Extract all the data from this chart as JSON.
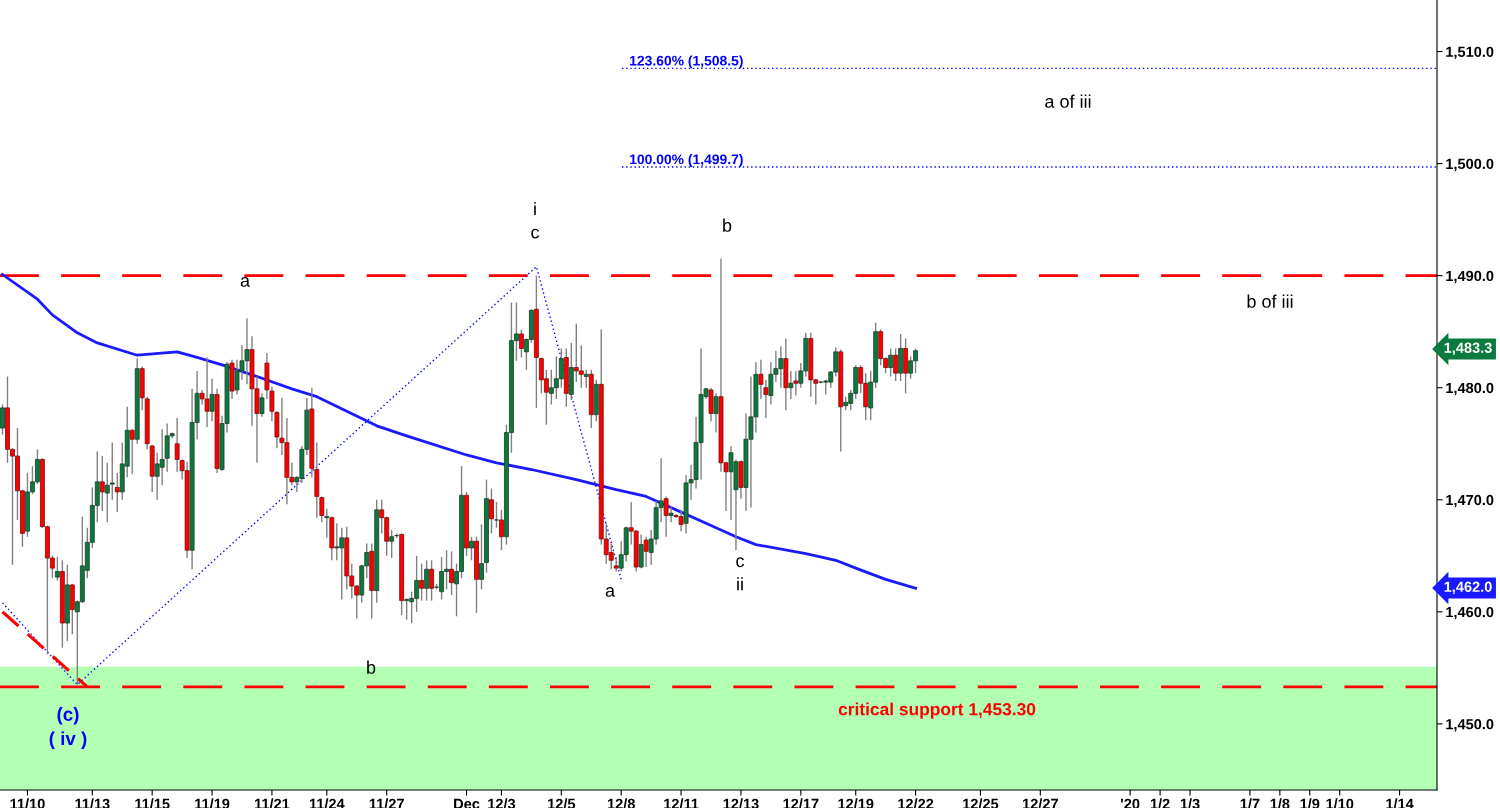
{
  "chart_data": {
    "type": "candlestick",
    "categories": [
      null,
      null,
      null,
      null,
      null,
      "11/10",
      null,
      null,
      null,
      null,
      null,
      null,
      null,
      null,
      null,
      null,
      null,
      null,
      "11/13",
      null,
      null,
      null,
      null,
      null,
      null,
      null,
      null,
      null,
      null,
      null,
      "11/15",
      null,
      null,
      null,
      null,
      null,
      null,
      null,
      null,
      null,
      null,
      null,
      "11/19",
      null,
      null,
      null,
      null,
      null,
      null,
      null,
      null,
      null,
      null,
      null,
      "11/21",
      null,
      null,
      null,
      null,
      null,
      null,
      null,
      null,
      null,
      null,
      "11/24",
      null,
      null,
      null,
      null,
      null,
      null,
      null,
      null,
      null,
      null,
      null,
      "11/27",
      null,
      null,
      null,
      null,
      null,
      null,
      null,
      null,
      null,
      null,
      null,
      null,
      null,
      null,
      null,
      "Dec",
      null,
      null,
      null,
      null,
      null,
      null,
      "12/3",
      null,
      null,
      null,
      null,
      null,
      null,
      null,
      null,
      null,
      null,
      null,
      "12/5",
      null,
      null,
      null,
      null,
      null,
      null,
      null,
      null,
      null,
      null,
      null,
      "12/8",
      null,
      null,
      null,
      null,
      null,
      null,
      null,
      null,
      null,
      null,
      null,
      "12/11",
      null,
      null,
      null,
      null,
      null,
      null,
      null,
      null,
      null,
      null,
      null,
      "12/13",
      null,
      null,
      null,
      null,
      null,
      null,
      null,
      null,
      null,
      null,
      null,
      "12/17",
      null,
      null,
      null,
      null,
      null,
      null,
      null,
      null,
      null,
      null,
      "12/19",
      null,
      null,
      null,
      null,
      null,
      null,
      null,
      null,
      null,
      null,
      null,
      "12/22",
      null,
      null,
      null,
      null,
      null,
      null,
      null,
      null,
      null,
      null,
      null,
      null,
      "12/25",
      null,
      null,
      null,
      null,
      null,
      null,
      null,
      null,
      null,
      null,
      null,
      "12/27",
      null,
      null,
      null,
      null,
      null,
      null,
      null,
      null,
      null,
      null,
      null,
      null,
      null,
      null,
      null,
      null,
      null,
      "'20",
      null,
      null,
      null,
      null,
      null,
      "1/2",
      null,
      null,
      null,
      null,
      null,
      "1/3",
      null,
      null,
      null,
      null,
      null,
      null,
      null,
      null,
      null,
      null,
      null,
      "1/7",
      null,
      null,
      null,
      null,
      null,
      "1/8",
      null,
      null,
      null,
      null,
      null,
      "1/9",
      null,
      null,
      null,
      null,
      null,
      "1/10",
      null,
      null,
      null,
      null,
      null,
      null,
      null,
      null,
      null,
      null,
      null,
      "1/14",
      null,
      null,
      null,
      null,
      null,
      null,
      null
    ],
    "ohlc": [
      [
        1476.4,
        1478.5,
        1475.8,
        1478.2
      ],
      [
        1478.2,
        1481.0,
        1473.3,
        1474.5
      ],
      [
        1474.5,
        1474.6,
        1464.2,
        1473.9
      ],
      [
        1473.9,
        1476.4,
        1468.2,
        1470.8
      ],
      [
        1470.8,
        1470.9,
        1465.8,
        1467.0
      ],
      [
        1467.2,
        1472.4,
        1466.7,
        1470.7
      ],
      [
        1470.7,
        1473.0,
        1470.5,
        1471.6
      ],
      [
        1471.6,
        1474.5,
        1471.4,
        1473.6
      ],
      [
        1473.6,
        1473.7,
        1467.5,
        1467.6
      ],
      [
        1467.6,
        1467.7,
        1456.2,
        1464.8
      ],
      [
        1464.8,
        1465.0,
        1463.0,
        1463.9
      ],
      [
        1463.1,
        1464.9,
        1462.8,
        1463.6
      ],
      [
        1463.6,
        1464.6,
        1456.8,
        1459.0
      ],
      [
        1459.0,
        1464.2,
        1457.4,
        1462.4
      ],
      [
        1462.4,
        1462.5,
        1458.0,
        1460.2
      ],
      [
        1460.0,
        1461.0,
        1453.5,
        1460.9
      ],
      [
        1460.9,
        1468.5,
        1460.8,
        1464.1
      ],
      [
        1463.7,
        1467.5,
        1463.0,
        1466.2
      ],
      [
        1466.2,
        1471.1,
        1465.7,
        1469.5
      ],
      [
        1469.5,
        1474.3,
        1468.0,
        1471.6
      ],
      [
        1471.6,
        1473.9,
        1469.0,
        1470.7
      ],
      [
        1470.6,
        1473.3,
        1468.0,
        1471.3
      ],
      [
        1471.4,
        1475.1,
        1470.0,
        1471.5
      ],
      [
        1471.1,
        1472.4,
        1468.9,
        1470.7
      ],
      [
        1470.7,
        1475.1,
        1470.0,
        1473.2
      ],
      [
        1473.0,
        1478.3,
        1472.0,
        1476.2
      ],
      [
        1476.2,
        1476.3,
        1472.3,
        1475.4
      ],
      [
        1475.4,
        1482.6,
        1475.0,
        1481.7
      ],
      [
        1481.7,
        1481.9,
        1478.0,
        1479.1
      ],
      [
        1479.0,
        1479.2,
        1474.5,
        1475.0
      ],
      [
        1474.8,
        1474.9,
        1470.7,
        1472.1
      ],
      [
        1472.1,
        1474.2,
        1470.0,
        1473.2
      ],
      [
        1472.9,
        1476.3,
        1471.3,
        1473.6
      ],
      [
        1473.7,
        1476.8,
        1472.5,
        1475.7
      ],
      [
        1475.7,
        1476.0,
        1475.5,
        1475.9
      ],
      [
        1475.0,
        1477.3,
        1472.5,
        1473.6
      ],
      [
        1473.5,
        1473.6,
        1471.8,
        1472.6
      ],
      [
        1472.6,
        1473.4,
        1464.8,
        1465.5
      ],
      [
        1465.5,
        1479.9,
        1463.8,
        1476.9
      ],
      [
        1476.9,
        1481.5,
        1475.4,
        1479.5
      ],
      [
        1479.5,
        1479.8,
        1478.5,
        1479.0
      ],
      [
        1479.0,
        1482.7,
        1476.5,
        1477.9
      ],
      [
        1477.9,
        1480.8,
        1477.0,
        1479.4
      ],
      [
        1479.4,
        1479.9,
        1472.4,
        1472.8
      ],
      [
        1472.7,
        1477.5,
        1472.6,
        1476.8
      ],
      [
        1476.8,
        1482.3,
        1476.0,
        1482.1
      ],
      [
        1482.2,
        1482.5,
        1479.0,
        1479.7
      ],
      [
        1479.8,
        1482.5,
        1479.4,
        1481.5
      ],
      [
        1481.5,
        1483.8,
        1480.7,
        1482.4
      ],
      [
        1482.4,
        1486.2,
        1480.3,
        1483.4
      ],
      [
        1483.4,
        1484.6,
        1476.6,
        1479.9
      ],
      [
        1479.9,
        1481.0,
        1473.3,
        1477.7
      ],
      [
        1477.7,
        1479.5,
        1477.4,
        1479.1
      ],
      [
        1482.2,
        1483.1,
        1479.0,
        1479.8
      ],
      [
        1479.7,
        1480.1,
        1477.0,
        1477.9
      ],
      [
        1477.8,
        1477.9,
        1474.6,
        1475.6
      ],
      [
        1475.5,
        1479.1,
        1474.0,
        1475.1
      ],
      [
        1475.1,
        1477.3,
        1469.6,
        1472.0
      ],
      [
        1472.0,
        1473.3,
        1471.3,
        1471.6
      ],
      [
        1471.6,
        1472.1,
        1470.7,
        1472.0
      ],
      [
        1471.9,
        1474.8,
        1471.5,
        1474.5
      ],
      [
        1474.5,
        1479.1,
        1474.0,
        1478.0
      ],
      [
        1478.1,
        1480.0,
        1472.0,
        1472.8
      ],
      [
        1472.7,
        1475.1,
        1468.4,
        1470.3
      ],
      [
        1470.2,
        1470.3,
        1468.0,
        1468.6
      ],
      [
        1468.4,
        1469.2,
        1466.6,
        1468.5
      ],
      [
        1468.4,
        1468.5,
        1464.6,
        1465.7
      ],
      [
        1465.7,
        1467.9,
        1464.6,
        1465.8
      ],
      [
        1465.7,
        1467.5,
        1461.1,
        1466.6
      ],
      [
        1466.6,
        1467.6,
        1462.0,
        1463.2
      ],
      [
        1463.2,
        1464.3,
        1461.2,
        1462.3
      ],
      [
        1462.3,
        1462.4,
        1459.4,
        1461.5
      ],
      [
        1461.5,
        1464.2,
        1460.8,
        1464.1
      ],
      [
        1464.1,
        1466.1,
        1463.0,
        1465.3
      ],
      [
        1465.4,
        1466.1,
        1459.4,
        1461.9
      ],
      [
        1461.9,
        1470.0,
        1460.8,
        1469.1
      ],
      [
        1469.1,
        1470.0,
        1467.0,
        1468.4
      ],
      [
        1468.4,
        1468.5,
        1465.0,
        1466.3
      ],
      [
        1466.3,
        1467.3,
        1464.8,
        1466.7
      ],
      [
        1466.8,
        1467.0,
        1466.6,
        1466.8
      ],
      [
        1466.9,
        1467.0,
        1459.7,
        1461.0
      ],
      [
        1461.0,
        1461.2,
        1459.3,
        1461.1
      ],
      [
        1460.9,
        1461.8,
        1459.0,
        1461.2
      ],
      [
        1461.2,
        1465.0,
        1460.0,
        1462.8
      ],
      [
        1462.8,
        1464.3,
        1461.0,
        1462.1
      ],
      [
        1462.1,
        1464.6,
        1461.0,
        1463.8
      ],
      [
        1463.8,
        1464.6,
        1461.0,
        1462.1
      ],
      [
        1462.2,
        1462.5,
        1462.0,
        1462.2
      ],
      [
        1461.8,
        1464.9,
        1461.1,
        1463.6
      ],
      [
        1463.6,
        1465.5,
        1462.0,
        1463.8
      ],
      [
        1463.8,
        1465.4,
        1461.5,
        1462.6
      ],
      [
        1462.5,
        1464.3,
        1459.6,
        1463.6
      ],
      [
        1463.6,
        1473.0,
        1463.0,
        1470.4
      ],
      [
        1470.4,
        1470.7,
        1465.0,
        1465.7
      ],
      [
        1465.7,
        1466.7,
        1464.6,
        1466.3
      ],
      [
        1466.3,
        1466.7,
        1459.9,
        1462.9
      ],
      [
        1462.9,
        1467.8,
        1462.0,
        1464.3
      ],
      [
        1464.4,
        1471.8,
        1463.5,
        1470.1
      ],
      [
        1470.0,
        1471.0,
        1467.0,
        1468.3
      ],
      [
        1468.2,
        1469.8,
        1467.5,
        1468.2
      ],
      [
        1468.2,
        1469.1,
        1465.5,
        1466.7
      ],
      [
        1466.7,
        1476.7,
        1466.0,
        1476.0
      ],
      [
        1476.0,
        1487.6,
        1474.2,
        1484.2
      ],
      [
        1484.2,
        1487.6,
        1482.4,
        1484.8
      ],
      [
        1484.8,
        1485.2,
        1482.7,
        1483.5
      ],
      [
        1483.2,
        1484.4,
        1481.6,
        1484.3
      ],
      [
        1484.3,
        1487.0,
        1484.0,
        1486.9
      ],
      [
        1487.0,
        1490.0,
        1478.2,
        1482.7
      ],
      [
        1482.6,
        1482.7,
        1479.5,
        1480.7
      ],
      [
        1480.8,
        1481.6,
        1476.7,
        1479.6
      ],
      [
        1479.5,
        1481.6,
        1478.5,
        1480.0
      ],
      [
        1480.0,
        1482.8,
        1479.0,
        1480.8
      ],
      [
        1480.8,
        1483.5,
        1480.0,
        1482.6
      ],
      [
        1482.7,
        1483.5,
        1478.3,
        1479.5
      ],
      [
        1479.4,
        1484.0,
        1478.9,
        1481.8
      ],
      [
        1481.8,
        1485.7,
        1480.5,
        1481.5
      ],
      [
        1481.5,
        1483.8,
        1480.0,
        1481.2
      ],
      [
        1481.0,
        1481.6,
        1480.0,
        1481.2
      ],
      [
        1481.2,
        1481.6,
        1476.4,
        1477.6
      ],
      [
        1477.6,
        1480.7,
        1477.0,
        1480.3
      ],
      [
        1480.3,
        1485.2,
        1466.0,
        1466.5
      ],
      [
        1466.5,
        1467.9,
        1464.3,
        1465.1
      ],
      [
        1465.3,
        1466.1,
        1463.8,
        1464.6
      ],
      [
        1464.1,
        1464.9,
        1463.6,
        1463.9
      ],
      [
        1463.9,
        1466.3,
        1463.6,
        1465.1
      ],
      [
        1465.1,
        1467.6,
        1464.5,
        1467.5
      ],
      [
        1467.5,
        1469.8,
        1466.0,
        1467.2
      ],
      [
        1467.2,
        1467.3,
        1463.6,
        1464.0
      ],
      [
        1464.0,
        1466.9,
        1463.9,
        1466.0
      ],
      [
        1466.4,
        1466.7,
        1464.0,
        1465.4
      ],
      [
        1465.3,
        1467.3,
        1464.2,
        1466.5
      ],
      [
        1466.5,
        1469.9,
        1466.0,
        1469.3
      ],
      [
        1469.3,
        1473.7,
        1468.0,
        1469.9
      ],
      [
        1470.1,
        1470.3,
        1466.7,
        1468.6
      ],
      [
        1468.6,
        1469.4,
        1468.0,
        1468.8
      ],
      [
        1468.6,
        1468.7,
        1468.4,
        1468.5
      ],
      [
        1468.5,
        1469.1,
        1467.2,
        1467.8
      ],
      [
        1467.9,
        1472.2,
        1467.0,
        1471.5
      ],
      [
        1471.5,
        1473.1,
        1470.0,
        1471.8
      ],
      [
        1471.8,
        1477.4,
        1471.0,
        1475.1
      ],
      [
        1475.1,
        1483.5,
        1471.8,
        1479.4
      ],
      [
        1479.2,
        1480.0,
        1479.0,
        1479.9
      ],
      [
        1479.8,
        1480.0,
        1477.0,
        1477.7
      ],
      [
        1477.7,
        1479.5,
        1476.0,
        1479.2
      ],
      [
        1479.2,
        1491.5,
        1472.5,
        1473.3
      ],
      [
        1473.3,
        1473.4,
        1469.0,
        1472.5
      ],
      [
        1472.5,
        1474.8,
        1468.2,
        1474.2
      ],
      [
        1470.9,
        1473.6,
        1465.5,
        1473.4
      ],
      [
        1473.4,
        1473.5,
        1470.1,
        1471.1
      ],
      [
        1471.1,
        1477.7,
        1469.0,
        1475.4
      ],
      [
        1475.4,
        1481.0,
        1469.3,
        1477.4
      ],
      [
        1477.4,
        1482.3,
        1476.0,
        1481.2
      ],
      [
        1481.2,
        1482.5,
        1479.0,
        1480.3
      ],
      [
        1480.0,
        1480.7,
        1477.3,
        1479.4
      ],
      [
        1479.3,
        1482.3,
        1478.5,
        1481.2
      ],
      [
        1481.2,
        1483.3,
        1480.5,
        1481.7
      ],
      [
        1481.7,
        1483.7,
        1480.0,
        1482.6
      ],
      [
        1482.6,
        1484.4,
        1478.0,
        1480.0
      ],
      [
        1480.0,
        1481.5,
        1479.0,
        1480.4
      ],
      [
        1480.6,
        1481.5,
        1479.3,
        1480.4
      ],
      [
        1480.4,
        1482.2,
        1480.0,
        1481.5
      ],
      [
        1481.5,
        1484.9,
        1481.0,
        1484.4
      ],
      [
        1484.4,
        1484.9,
        1479.2,
        1480.7
      ],
      [
        1480.7,
        1480.8,
        1478.5,
        1480.4
      ],
      [
        1480.5,
        1480.6,
        1480.4,
        1480.5
      ],
      [
        1480.5,
        1480.7,
        1479.4,
        1480.6
      ],
      [
        1480.5,
        1481.5,
        1480.0,
        1481.4
      ],
      [
        1481.4,
        1483.6,
        1481.0,
        1483.2
      ],
      [
        1483.2,
        1483.4,
        1474.3,
        1478.3
      ],
      [
        1478.4,
        1479.2,
        1478.0,
        1478.7
      ],
      [
        1478.6,
        1479.8,
        1478.0,
        1479.5
      ],
      [
        1479.5,
        1482.0,
        1479.0,
        1481.8
      ],
      [
        1481.8,
        1482.0,
        1479.5,
        1480.4
      ],
      [
        1480.4,
        1481.3,
        1477.1,
        1478.3
      ],
      [
        1478.2,
        1481.5,
        1477.1,
        1480.5
      ],
      [
        1480.5,
        1485.8,
        1480.0,
        1485.0
      ],
      [
        1485.0,
        1485.2,
        1482.0,
        1482.6
      ],
      [
        1482.6,
        1482.7,
        1481.3,
        1481.8
      ],
      [
        1481.8,
        1483.5,
        1481.0,
        1482.9
      ],
      [
        1482.9,
        1483.5,
        1480.6,
        1481.3
      ],
      [
        1481.3,
        1484.8,
        1480.6,
        1483.5
      ],
      [
        1483.5,
        1484.4,
        1479.5,
        1481.3
      ],
      [
        1481.3,
        1482.8,
        1480.8,
        1482.4
      ],
      [
        1482.4,
        1483.5,
        1481.3,
        1483.3
      ],
      null,
      null,
      null,
      null,
      null,
      null,
      null,
      null,
      null,
      null,
      null,
      null,
      null,
      null,
      null,
      null,
      null,
      null,
      null,
      null,
      null,
      null,
      null,
      null,
      null,
      null,
      null,
      null,
      null,
      null,
      null,
      null,
      null,
      null,
      null,
      null,
      null,
      null,
      null,
      null,
      null,
      null,
      null,
      null,
      null,
      null,
      null,
      null,
      null,
      null,
      null,
      null,
      null,
      null,
      null,
      null,
      null,
      null,
      null,
      null,
      null,
      null,
      null,
      null,
      null,
      null,
      null,
      null,
      null,
      null,
      null,
      null,
      null,
      null,
      null,
      null,
      null,
      null,
      null,
      null,
      null,
      null,
      null,
      null,
      null,
      null,
      null,
      null,
      null,
      null,
      null,
      null,
      null,
      null,
      null,
      null,
      null,
      null,
      null,
      null,
      null,
      null,
      null,
      null
    ],
    "series": [
      {
        "type": "line",
        "color": "#1a1aff",
        "line_style": "solid",
        "values": [
          1490.1,
          null,
          null,
          null,
          null,
          null,
          null,
          1487.9,
          null,
          null,
          1486.5,
          null,
          null,
          null,
          null,
          1484.9,
          null,
          null,
          null,
          1484.0,
          null,
          null,
          null,
          null,
          null,
          null,
          null,
          1482.9,
          null,
          null,
          null,
          null,
          null,
          null,
          null,
          1483.2,
          null,
          null,
          null,
          1482.7,
          null,
          null,
          null,
          null,
          null,
          1481.9,
          null,
          null,
          null,
          null,
          null,
          1481.0,
          null,
          null,
          null,
          null,
          null,
          null,
          1479.9,
          null,
          null,
          null,
          null,
          1479.2,
          null,
          null,
          null,
          null,
          null,
          null,
          null,
          null,
          null,
          null,
          null,
          1476.6,
          null,
          null,
          null,
          null,
          null,
          1475.7,
          null,
          null,
          null,
          null,
          null,
          null,
          null,
          null,
          null,
          null,
          null,
          1474.0,
          null,
          null,
          null,
          null,
          null,
          1473.3,
          null,
          null,
          null,
          null,
          null,
          null,
          1472.7,
          null,
          null,
          null,
          null,
          null,
          null,
          null,
          null,
          1471.8,
          null,
          null,
          null,
          null,
          null,
          null,
          null,
          1470.9,
          null,
          null,
          null,
          null,
          null,
          1470.3,
          null,
          null,
          null,
          null,
          null,
          1469.1,
          null,
          null,
          null,
          null,
          null,
          1467.9,
          null,
          null,
          null,
          null,
          null,
          1466.7,
          null,
          null,
          null,
          1466.0,
          null,
          null,
          null,
          null,
          null,
          null,
          null,
          null,
          null,
          1465.2,
          null,
          null,
          null,
          null,
          null,
          1464.6,
          null,
          null,
          null,
          1463.9,
          null,
          null,
          null,
          null,
          null,
          1462.9,
          null,
          null,
          null,
          null,
          null,
          1462.1,
          null,
          null,
          null,
          null,
          null,
          null,
          null,
          null,
          null,
          null,
          null,
          null,
          null,
          null,
          null,
          null,
          null,
          null,
          null,
          null,
          null,
          null,
          null,
          null,
          null,
          null,
          null,
          null,
          null,
          null,
          null,
          null,
          null,
          null,
          null,
          null,
          null,
          null,
          null,
          null,
          null,
          null,
          null,
          null,
          null,
          null,
          null,
          null,
          null,
          null,
          null,
          null,
          null,
          null,
          null,
          null,
          null,
          null,
          null,
          null,
          null,
          null,
          null,
          null,
          null,
          null,
          null,
          null,
          null,
          null,
          null,
          null,
          null,
          null,
          null,
          null,
          null,
          null,
          null,
          null,
          null,
          null,
          null,
          null,
          null,
          null,
          null,
          null,
          null,
          null,
          null,
          null,
          null,
          null,
          null,
          null,
          null,
          null,
          null,
          null,
          null,
          null,
          null,
          null
        ]
      },
      {
        "type": "line",
        "color": "#0000ff",
        "line_style": "dotted",
        "values": [
          1460.8,
          null,
          null,
          null,
          null,
          null,
          null,
          null,
          null,
          null,
          null,
          null,
          null,
          null,
          null,
          1453.5,
          null,
          null,
          null,
          null,
          null,
          null,
          null,
          null,
          null,
          null,
          null,
          null,
          null,
          null,
          null,
          null,
          null,
          null,
          null,
          null,
          null,
          null,
          null,
          null,
          null,
          null,
          null,
          null,
          null,
          null,
          null,
          null,
          null,
          null,
          null,
          null,
          null,
          null,
          null,
          null,
          null,
          null,
          null,
          null,
          null,
          null,
          null,
          null,
          null,
          null,
          null,
          null,
          null,
          null,
          null,
          null,
          null,
          null,
          null,
          null,
          null,
          null,
          null,
          null,
          null,
          null,
          null,
          null,
          null,
          null,
          null,
          null,
          null,
          null,
          null,
          null,
          null,
          null,
          null,
          null,
          null,
          null,
          null,
          null,
          null,
          null,
          null,
          null,
          null,
          null,
          null,
          1490.8,
          null,
          null,
          null,
          null,
          null,
          null,
          null,
          null,
          null,
          null,
          null,
          null,
          null,
          null,
          null,
          null,
          1462.9,
          null,
          null,
          null,
          null,
          null,
          null,
          null,
          null,
          null,
          null,
          null,
          null,
          null,
          null,
          null,
          null,
          null,
          null,
          null,
          null,
          null,
          null,
          null,
          null,
          null,
          null,
          null,
          null,
          null,
          null,
          null,
          null,
          null,
          null,
          null,
          null,
          null,
          null,
          null,
          null,
          null,
          null,
          null,
          null,
          null,
          null,
          null,
          null,
          null,
          null,
          null,
          null,
          null,
          null,
          null,
          null,
          null,
          null,
          null,
          null,
          null,
          null,
          null,
          null,
          null,
          null,
          null,
          null,
          null,
          null,
          null,
          null,
          null,
          null,
          null,
          null,
          null,
          null,
          null,
          null,
          null,
          null,
          null,
          null,
          null,
          null,
          null,
          null,
          null,
          null,
          null,
          null,
          null,
          null,
          null,
          null,
          null,
          null,
          null,
          null,
          null,
          null,
          null,
          null,
          null,
          null,
          null,
          null,
          null,
          null,
          null,
          null,
          null,
          null,
          null,
          null,
          null,
          null,
          null,
          null,
          null,
          null,
          null,
          null,
          null,
          null,
          null,
          null,
          null,
          null,
          null,
          null,
          null,
          null,
          null,
          null,
          null,
          null,
          null,
          null,
          null,
          null,
          null,
          null,
          null,
          null,
          null,
          null,
          null,
          null,
          null,
          null,
          null,
          null,
          null,
          null,
          null,
          null,
          null,
          null,
          null,
          null,
          null
        ]
      },
      {
        "type": "line",
        "color": "#ff0000",
        "line_style": "dashed",
        "values": [
          1460.0,
          null,
          null,
          null,
          null,
          null,
          null,
          null,
          null,
          null,
          null,
          null,
          null,
          null,
          null,
          null,
          null,
          1453.3,
          null,
          null,
          null,
          null,
          null,
          null,
          null,
          null,
          null,
          null,
          null,
          null,
          null,
          null,
          null,
          null,
          null,
          null,
          null,
          null,
          null,
          null,
          null,
          null,
          null,
          null,
          null,
          null,
          null,
          null,
          null,
          null,
          null,
          null,
          null,
          null,
          null,
          null,
          null,
          null,
          null,
          null,
          null,
          null,
          null,
          null,
          null,
          null,
          null,
          null,
          null,
          null,
          null,
          null,
          null,
          null,
          null,
          null,
          null,
          null,
          null,
          null,
          null,
          null,
          null,
          null,
          null,
          null,
          null,
          null,
          null,
          null,
          null,
          null,
          null,
          null,
          null,
          null,
          null,
          null,
          null,
          null,
          null,
          null,
          null,
          null,
          null,
          null,
          null,
          null,
          null,
          null,
          null,
          null,
          null,
          null,
          null,
          null,
          null,
          null,
          null,
          null,
          null,
          null,
          null,
          null,
          null,
          null,
          null,
          null,
          null,
          null,
          null,
          null,
          null,
          null,
          null,
          null,
          null,
          null,
          null,
          null,
          null,
          null,
          null,
          null,
          null,
          null,
          null,
          null,
          null,
          null,
          null,
          null,
          null,
          null,
          null,
          null,
          null,
          null,
          null,
          null,
          null,
          null,
          null,
          null,
          null,
          null,
          null,
          null,
          null,
          null,
          null,
          null,
          null,
          null,
          null,
          null,
          null,
          null,
          null,
          null,
          null,
          null,
          null,
          null,
          null,
          null,
          null,
          null,
          null,
          null,
          null,
          null,
          null,
          null,
          null,
          null,
          null,
          null,
          null,
          null,
          null,
          null,
          null,
          null,
          null,
          null,
          null,
          null,
          null,
          null,
          null,
          null,
          null,
          null,
          null,
          null,
          null,
          null,
          null,
          null,
          null,
          null,
          null,
          null,
          null,
          null,
          null,
          null,
          null,
          null,
          null,
          null,
          null,
          null,
          null,
          null,
          null,
          null,
          null,
          null,
          null,
          null,
          null,
          null,
          null,
          null,
          null,
          null,
          null,
          null,
          null,
          null,
          null,
          null,
          null,
          null,
          null,
          null,
          null,
          null,
          null,
          null,
          null,
          null,
          null,
          null,
          null,
          null,
          null,
          null,
          null,
          null,
          null,
          null,
          null,
          null,
          null,
          null,
          null,
          null,
          null,
          null,
          null,
          null,
          null,
          null,
          null,
          null
        ]
      }
    ],
    "ylim": [
      1444.1,
      1514.6
    ],
    "yticks": [
      {
        "value": 1450,
        "label": "1,450.0"
      },
      {
        "value": 1460,
        "label": "1,460.0"
      },
      {
        "value": 1470,
        "label": "1,470.0"
      },
      {
        "value": 1480,
        "label": "1,480.0"
      },
      {
        "value": 1490,
        "label": "1,490.0"
      },
      {
        "value": 1500,
        "label": "1,500.0"
      },
      {
        "value": 1510,
        "label": "1,510.0"
      }
    ],
    "ref_lines": [
      {
        "axis": "y",
        "value": 1508.5,
        "label": "123.60% (1,508.5)",
        "color": "#0000ff",
        "line_style": "dotted"
      },
      {
        "axis": "y",
        "value": 1499.7,
        "label": "100.00% (1,499.7)",
        "color": "#0000ff",
        "line_style": "dotted"
      },
      {
        "axis": "y",
        "value": 1490.0,
        "color": "#ff0000",
        "line_style": "dashed"
      },
      {
        "axis": "y",
        "value": 1453.3,
        "label": "critical support 1,453.30",
        "color": "#ff0000",
        "line_style": "dashed"
      }
    ],
    "bands": [
      {
        "axis": "y",
        "from": 1444.1,
        "to": 1455.1,
        "color": "#b3ffb3"
      }
    ],
    "annotations": [
      "a",
      "i\nc",
      "b",
      "a of iii",
      "b of iii",
      "a",
      "c\nii",
      "b",
      "(c)\n( iv )",
      "1,483.3",
      "1,462.0"
    ]
  }
}
